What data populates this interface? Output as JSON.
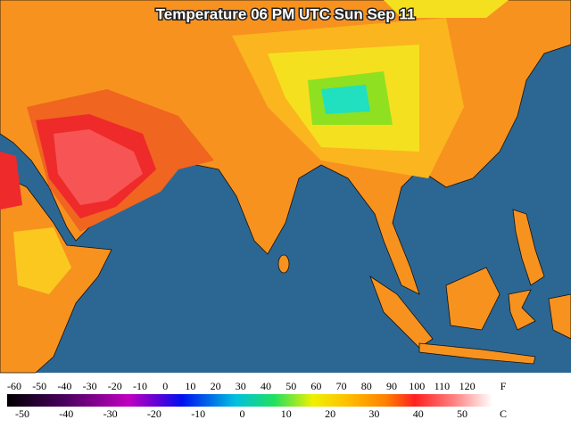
{
  "title": "Temperature 06 PM UTC Sun Sep 11",
  "legend": {
    "fahrenheit_labels": [
      -60,
      -50,
      -40,
      -30,
      -20,
      -10,
      0,
      10,
      20,
      30,
      40,
      50,
      60,
      70,
      80,
      90,
      100,
      110,
      120
    ],
    "fahrenheit_unit": "F",
    "celsius_labels": [
      -50,
      -40,
      -30,
      -20,
      -10,
      0,
      10,
      20,
      30,
      40,
      50
    ],
    "celsius_unit": "C"
  }
}
